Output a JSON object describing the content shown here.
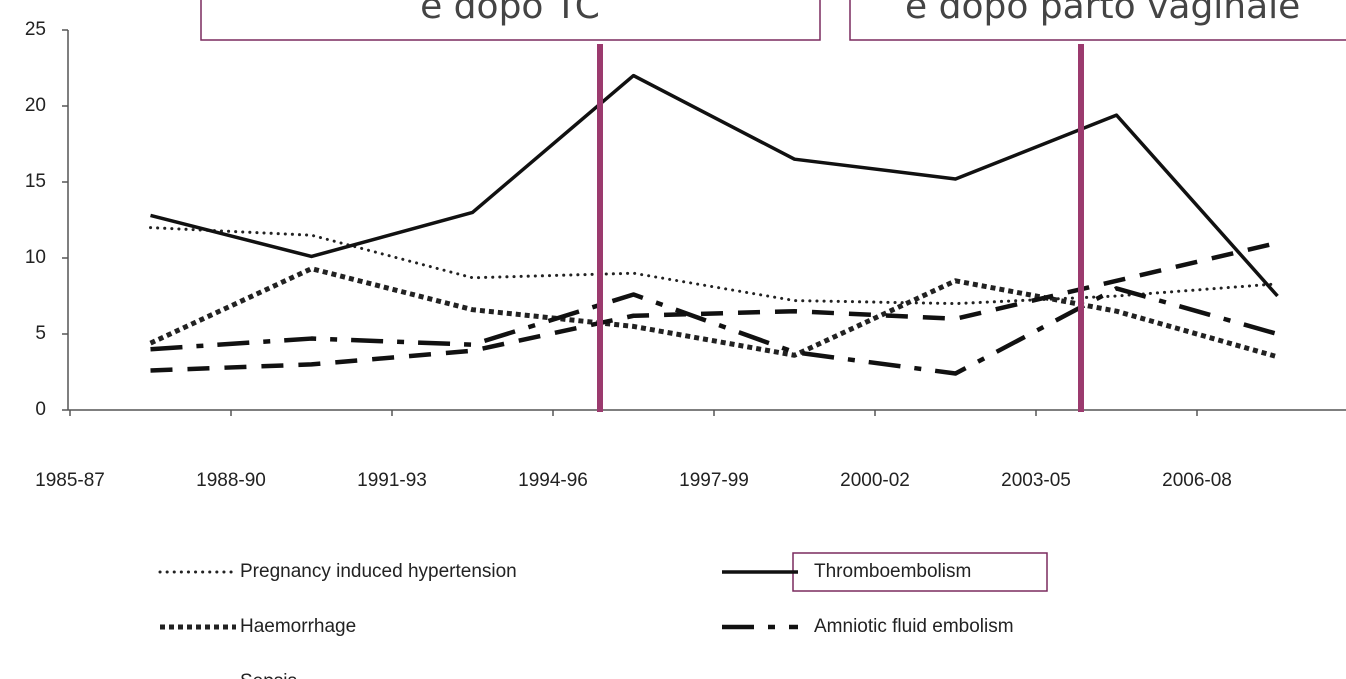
{
  "chart_data": {
    "type": "line",
    "categories": [
      "1985-87",
      "1988-90",
      "1991-93",
      "1994-96",
      "1997-99",
      "2000-02",
      "2003-05",
      "2006-08"
    ],
    "ylim": [
      0,
      25
    ],
    "yticks": [
      0,
      5,
      10,
      15,
      20,
      25
    ],
    "series": [
      {
        "name": "Pregnancy induced hypertension",
        "color": "#222222",
        "dash": "dotted",
        "values": [
          12,
          11.5,
          8.7,
          9,
          7.2,
          7,
          7.5,
          8.3
        ]
      },
      {
        "name": "Thromboembolism",
        "color": "#111111",
        "dash": "solid",
        "values": [
          12.8,
          10.1,
          13,
          22,
          16.5,
          15.2,
          19.4,
          7.5
        ]
      },
      {
        "name": "Haemorrhage",
        "color": "#222222",
        "dash": "dots",
        "values": [
          4.4,
          9.3,
          6.6,
          5.5,
          3.6,
          8.5,
          6.5,
          3.5
        ]
      },
      {
        "name": "Amniotic fluid embolism",
        "color": "#111111",
        "dash": "dashdot",
        "values": [
          4,
          4.7,
          4.3,
          7.6,
          3.8,
          2.4,
          8,
          5
        ]
      },
      {
        "name": "Sepsis",
        "color": "#111111",
        "dash": "dashed",
        "values": [
          2.6,
          3,
          3.9,
          6.2,
          6.5,
          6,
          8.5,
          11
        ]
      }
    ],
    "annotations": [
      "e dopo TC",
      "e dopo parto vaginale"
    ],
    "marker_color": "#9b3a6e"
  }
}
